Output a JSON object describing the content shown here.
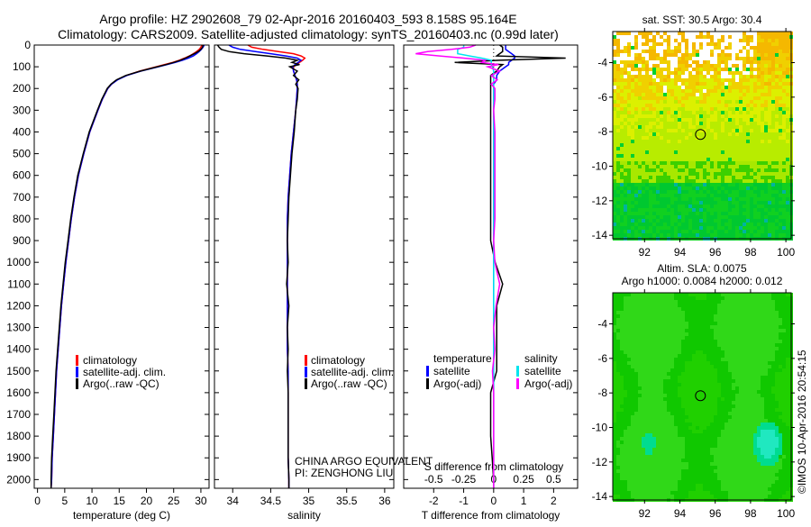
{
  "title": {
    "line1": "Argo profile: HZ 2902608_79 02-Apr-2016 20160403_593 8.158S 95.164E",
    "line2": "Climatology: CARS2009. Satellite-adjusted climatology: synTS_20160403.nc (0.99d later)"
  },
  "colors": {
    "climatology": "#ff0000",
    "satellite": "#0000ff",
    "argo": "#000000",
    "sal_satellite": "#00e5ee",
    "sal_argo": "#ff00ff"
  },
  "footer": {
    "pi_line1": "CHINA ARGO EQUIVALENT",
    "pi_line2": "PI: ZENGHONG LIU",
    "credit": "©IMOS 10-Apr-2016 20:54:15"
  },
  "chart_data": [
    {
      "type": "line",
      "name": "temperature-profile",
      "xlabel": "temperature (deg C)",
      "ylabel": "",
      "xlim": [
        -0.6,
        31.5
      ],
      "ylim": [
        2040,
        0
      ],
      "xticks": [
        "0",
        "5",
        "10",
        "15",
        "20",
        "25",
        "30"
      ],
      "xtick_values": [
        0,
        5,
        10,
        15,
        20,
        25,
        30
      ],
      "yticks": [
        "0",
        "100",
        "200",
        "300",
        "400",
        "500",
        "600",
        "700",
        "800",
        "900",
        "1000",
        "1100",
        "1200",
        "1300",
        "1400",
        "1500",
        "1600",
        "1700",
        "1800",
        "1900",
        "2000"
      ],
      "depth": [
        0,
        10,
        20,
        30,
        40,
        50,
        60,
        70,
        80,
        90,
        100,
        120,
        140,
        160,
        180,
        200,
        250,
        300,
        400,
        500,
        600,
        700,
        800,
        900,
        1000,
        1100,
        1200,
        1300,
        1400,
        1500,
        1600,
        1700,
        1800,
        1900,
        2000,
        2040
      ],
      "series": [
        {
          "name": "climatology",
          "values": [
            30.2,
            30.0,
            29.7,
            29.2,
            28.6,
            27.9,
            27.0,
            26.0,
            24.8,
            23.3,
            21.8,
            18.8,
            16.3,
            14.6,
            13.6,
            12.9,
            11.9,
            11.1,
            9.6,
            8.5,
            7.5,
            6.8,
            6.2,
            5.7,
            5.2,
            4.8,
            4.4,
            4.1,
            3.8,
            3.5,
            3.3,
            3.1,
            2.9,
            2.7,
            2.6,
            2.5
          ]
        },
        {
          "name": "satellite-adj. clim.",
          "values": [
            30.6,
            30.4,
            30.1,
            29.7,
            29.2,
            28.6,
            27.7,
            26.6,
            25.3,
            23.8,
            22.2,
            19.0,
            16.4,
            14.7,
            13.6,
            12.9,
            11.9,
            11.1,
            9.6,
            8.5,
            7.5,
            6.8,
            6.2,
            5.7,
            5.2,
            4.8,
            4.4,
            4.1,
            3.8,
            3.5,
            3.3,
            3.1,
            2.9,
            2.7,
            2.6,
            2.5
          ]
        },
        {
          "name": "Argo(..raw -QC)",
          "values": [
            30.4,
            30.3,
            30.0,
            29.5,
            28.8,
            28.0,
            27.2,
            26.2,
            25.0,
            23.6,
            22.0,
            18.9,
            16.2,
            14.5,
            13.5,
            12.8,
            11.8,
            11.0,
            9.5,
            8.4,
            7.4,
            6.7,
            6.1,
            5.6,
            5.1,
            4.7,
            4.3,
            4.0,
            3.7,
            3.4,
            3.2,
            3.0,
            2.8,
            2.6,
            2.5,
            2.5
          ]
        }
      ],
      "legend": [
        "climatology",
        "satellite-adj. clim.",
        "Argo(..raw -QC)"
      ],
      "legend_position": "bottom-left"
    },
    {
      "type": "line",
      "name": "salinity-profile",
      "xlabel": "salinity",
      "xlim": [
        33.76,
        36.12
      ],
      "ylim": [
        2040,
        0
      ],
      "xticks": [
        "34",
        "34.5",
        "35",
        "35.5",
        "36"
      ],
      "xtick_values": [
        34,
        34.5,
        35,
        35.5,
        36
      ],
      "depth": [
        0,
        10,
        20,
        30,
        40,
        50,
        60,
        70,
        80,
        90,
        100,
        120,
        140,
        160,
        180,
        200,
        250,
        300,
        400,
        500,
        600,
        700,
        800,
        900,
        1000,
        1100,
        1200,
        1300,
        1400,
        1500,
        1600,
        1700,
        1800,
        1900,
        2000,
        2040
      ],
      "series": [
        {
          "name": "climatology",
          "values": [
            34.2,
            34.25,
            34.4,
            34.6,
            34.8,
            34.9,
            34.95,
            34.92,
            34.88,
            34.84,
            34.8,
            34.8,
            34.82,
            34.84,
            34.85,
            34.85,
            34.84,
            34.83,
            34.8,
            34.77,
            34.75,
            34.73,
            34.72,
            34.72,
            34.72,
            34.72,
            34.72,
            34.72,
            34.72,
            34.73,
            34.73,
            34.73,
            34.73,
            34.73,
            34.74,
            34.74
          ]
        },
        {
          "name": "satellite-adj. clim.",
          "values": [
            33.95,
            34.0,
            34.1,
            34.3,
            34.5,
            34.7,
            34.85,
            34.9,
            34.86,
            34.82,
            34.79,
            34.8,
            34.82,
            34.84,
            34.85,
            34.85,
            34.84,
            34.83,
            34.8,
            34.77,
            34.75,
            34.73,
            34.72,
            34.72,
            34.72,
            34.72,
            34.72,
            34.72,
            34.72,
            34.73,
            34.73,
            34.73,
            34.73,
            34.73,
            34.74,
            34.74
          ]
        },
        {
          "name": "Argo(..raw -QC)",
          "values": [
            33.8,
            33.82,
            33.85,
            33.95,
            34.15,
            34.45,
            34.7,
            34.85,
            34.78,
            34.88,
            34.75,
            34.85,
            34.8,
            34.87,
            34.83,
            34.86,
            34.85,
            34.83,
            34.81,
            34.78,
            34.76,
            34.74,
            34.73,
            34.72,
            34.73,
            34.71,
            34.74,
            34.72,
            34.73,
            34.72,
            34.73,
            34.73,
            34.73,
            34.73,
            34.74,
            34.74
          ]
        }
      ],
      "legend": [
        "climatology",
        "satellite-adj. clim.",
        "Argo(..raw -QC)"
      ],
      "legend_position": "bottom-left"
    },
    {
      "type": "line",
      "name": "difference-profile",
      "xlabel": "T difference from climatology",
      "x2label": "S difference from climatology",
      "xlim": [
        -3.0,
        2.8
      ],
      "ylim": [
        2040,
        0
      ],
      "xticks": [
        "-2",
        "-1",
        "0",
        "1",
        "2"
      ],
      "xtick_values": [
        -2,
        -1,
        0,
        1,
        2
      ],
      "x2ticks": [
        "-0.5",
        "-0.25",
        "0",
        "0.25",
        "0.5"
      ],
      "x2tick_values": [
        -0.5,
        -0.25,
        0,
        0.25,
        0.5
      ],
      "s_scale": 4,
      "depth": [
        0,
        10,
        20,
        30,
        40,
        50,
        60,
        70,
        80,
        90,
        100,
        120,
        140,
        160,
        180,
        200,
        250,
        300,
        400,
        500,
        600,
        700,
        800,
        900,
        1000,
        1100,
        1200,
        1300,
        1400,
        1500,
        1600,
        1700,
        1800,
        1900,
        2000,
        2040
      ],
      "series": [
        {
          "name": "temperature satellite",
          "axis": "T",
          "values": [
            0.4,
            0.4,
            0.4,
            0.5,
            0.6,
            0.7,
            0.7,
            0.6,
            0.5,
            0.5,
            0.4,
            0.2,
            0.1,
            0.1,
            0,
            0,
            0,
            0,
            0,
            0,
            0,
            0,
            0,
            0,
            0,
            0,
            0,
            0,
            0,
            0,
            0,
            0,
            0,
            0,
            0,
            0
          ]
        },
        {
          "name": "temperature Argo(-adj)",
          "axis": "T",
          "values": [
            0.2,
            0.3,
            0.3,
            0.3,
            0.2,
            0.1,
            2.4,
            0.2,
            -1.3,
            0.3,
            0.2,
            0.1,
            -0.1,
            -0.1,
            -0.1,
            -0.1,
            -0.1,
            -0.1,
            -0.1,
            -0.1,
            -0.1,
            -0.1,
            -0.1,
            -0.1,
            0.05,
            0.3,
            0.1,
            0.1,
            0.1,
            0.1,
            -0.1,
            -0.1,
            -0.1,
            -0.05,
            0,
            0
          ]
        },
        {
          "name": "salinity satellite",
          "axis": "S",
          "values": [
            -0.25,
            -0.25,
            -0.3,
            -0.3,
            -0.3,
            -0.2,
            -0.1,
            -0.02,
            -0.02,
            -0.02,
            -0.01,
            0,
            0,
            0,
            0,
            0,
            0,
            0,
            0,
            0,
            0,
            0,
            0,
            0,
            0,
            0,
            0,
            0,
            0,
            0,
            0,
            0,
            0,
            0,
            0,
            0
          ]
        },
        {
          "name": "salinity Argo(-adj)",
          "axis": "S",
          "values": [
            -0.15,
            -0.2,
            -0.35,
            -0.55,
            -0.65,
            -0.45,
            -0.25,
            -0.07,
            -0.1,
            0.04,
            -0.05,
            0.05,
            -0.02,
            0.03,
            -0.02,
            0.01,
            0.01,
            0,
            0.01,
            0.01,
            0.01,
            0.01,
            0.01,
            0.0,
            0.01,
            0.05,
            0.02,
            0,
            0.01,
            -0.01,
            0,
            0,
            0,
            0,
            0,
            0
          ]
        }
      ],
      "legend_groups": [
        {
          "title": "temperature",
          "items": [
            "satellite",
            "Argo(-adj)"
          ]
        },
        {
          "title": "salinity",
          "items": [
            "satellite",
            "Argo(-adj)"
          ]
        }
      ]
    },
    {
      "type": "heatmap",
      "name": "sst-map",
      "title": "sat. SST: 30.5 Argo: 30.4",
      "xlim": [
        90.2,
        100.3
      ],
      "ylim": [
        -14.2,
        -2.2
      ],
      "xticks": [
        "92",
        "94",
        "96",
        "98",
        "100"
      ],
      "xtick_values": [
        92,
        94,
        96,
        98,
        100
      ],
      "yticks": [
        "-4",
        "-6",
        "-8",
        "-10",
        "-12",
        "-14"
      ],
      "ytick_values": [
        -4,
        -6,
        -8,
        -10,
        -12,
        -14
      ],
      "float_position": {
        "lon": 95.164,
        "lat": -8.158
      }
    },
    {
      "type": "heatmap",
      "name": "sla-map",
      "title_line1": "Altim. SLA: 0.0075",
      "title_line2": "Argo h1000: 0.0084 h2000: 0.012",
      "xlim": [
        90.2,
        100.3
      ],
      "ylim": [
        -14.2,
        -2.2
      ],
      "xticks": [
        "92",
        "94",
        "96",
        "98",
        "100"
      ],
      "xtick_values": [
        92,
        94,
        96,
        98,
        100
      ],
      "yticks": [
        "-4",
        "-6",
        "-8",
        "-10",
        "-12",
        "-14"
      ],
      "ytick_values": [
        -4,
        -6,
        -8,
        -10,
        -12,
        -14
      ],
      "float_position": {
        "lon": 95.164,
        "lat": -8.158
      }
    }
  ]
}
